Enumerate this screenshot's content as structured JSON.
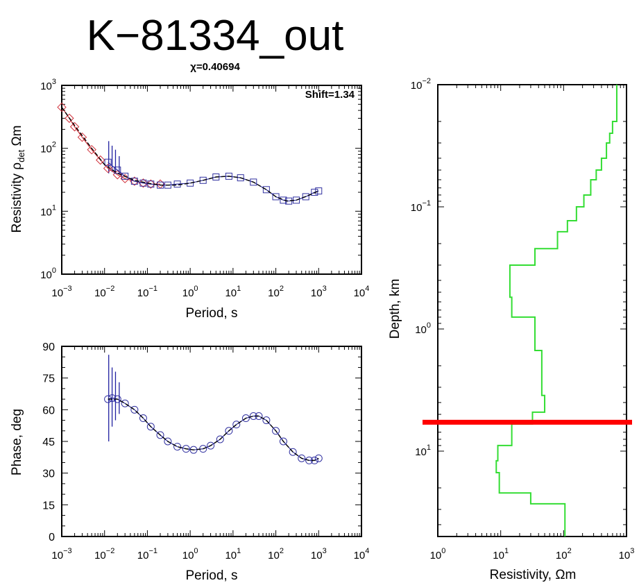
{
  "figure": {
    "title": "K−81334_out",
    "chi_label": "χ=0.40694",
    "shift_label": "Shift=1.34"
  },
  "chart_data": [
    {
      "id": "resistivity",
      "type": "scatter",
      "xlabel": "Period, s",
      "ylabel_main": "Resistivity ρ",
      "ylabel_sub": "det",
      "ylabel_unit": " Ωm",
      "xscale": "log",
      "yscale": "log",
      "xlim": [
        0.001,
        10000
      ],
      "ylim": [
        1,
        1000
      ],
      "x_ticks": [
        {
          "base": "10",
          "exp": "−3",
          "v": 0.001
        },
        {
          "base": "10",
          "exp": "−2",
          "v": 0.01
        },
        {
          "base": "10",
          "exp": "−1",
          "v": 0.1
        },
        {
          "base": "10",
          "exp": "0",
          "v": 1
        },
        {
          "base": "10",
          "exp": "1",
          "v": 10
        },
        {
          "base": "10",
          "exp": "2",
          "v": 100
        },
        {
          "base": "10",
          "exp": "3",
          "v": 1000
        },
        {
          "base": "10",
          "exp": "4",
          "v": 10000
        }
      ],
      "y_ticks": [
        {
          "base": "10",
          "exp": "0",
          "v": 1
        },
        {
          "base": "10",
          "exp": "1",
          "v": 10
        },
        {
          "base": "10",
          "exp": "2",
          "v": 100
        },
        {
          "base": "10",
          "exp": "3",
          "v": 1000
        }
      ],
      "series": [
        {
          "marker": "diamond",
          "color": "#d0303a",
          "x": [
            0.001,
            0.0015,
            0.002,
            0.003,
            0.005,
            0.008,
            0.012,
            0.02,
            0.03,
            0.05,
            0.08,
            0.12,
            0.2
          ],
          "y": [
            450,
            300,
            220,
            150,
            95,
            65,
            48,
            38,
            33,
            30,
            28,
            27,
            27
          ]
        },
        {
          "marker": "square",
          "color": "#3030a0",
          "x": [
            0.012,
            0.02,
            0.03,
            0.05,
            0.08,
            0.12,
            0.2,
            0.3,
            0.5,
            1,
            2,
            4,
            8,
            15,
            30,
            60,
            100,
            150,
            200,
            300,
            500,
            800,
            1000
          ],
          "y": [
            60,
            45,
            36,
            30,
            28,
            27,
            26,
            26,
            27,
            28,
            31,
            35,
            36,
            34,
            29,
            22,
            17,
            15,
            14.5,
            15,
            17,
            20,
            21
          ]
        }
      ],
      "model_curve": {
        "color": "#000000",
        "x": [
          0.001,
          0.002,
          0.005,
          0.01,
          0.02,
          0.05,
          0.1,
          0.2,
          0.5,
          1,
          2,
          4,
          8,
          15,
          30,
          60,
          100,
          180,
          300,
          600,
          1000
        ],
        "y": [
          450,
          230,
          100,
          55,
          40,
          31,
          28,
          26,
          26,
          28,
          31,
          35,
          36,
          34,
          29,
          22,
          17,
          14.5,
          15,
          18,
          21
        ]
      },
      "error_bars": [
        {
          "x": 0.0125,
          "lo": 40,
          "hi": 130
        },
        {
          "x": 0.015,
          "lo": 42,
          "hi": 110
        },
        {
          "x": 0.018,
          "lo": 40,
          "hi": 95
        },
        {
          "x": 0.022,
          "lo": 40,
          "hi": 75
        }
      ]
    },
    {
      "id": "phase",
      "type": "scatter",
      "xlabel": "Period, s",
      "ylabel": "Phase, deg",
      "xscale": "log",
      "xlim": [
        0.001,
        10000
      ],
      "ylim": [
        0,
        90
      ],
      "x_ticks": [
        {
          "base": "10",
          "exp": "−3",
          "v": 0.001
        },
        {
          "base": "10",
          "exp": "−2",
          "v": 0.01
        },
        {
          "base": "10",
          "exp": "−1",
          "v": 0.1
        },
        {
          "base": "10",
          "exp": "0",
          "v": 1
        },
        {
          "base": "10",
          "exp": "1",
          "v": 10
        },
        {
          "base": "10",
          "exp": "2",
          "v": 100
        },
        {
          "base": "10",
          "exp": "3",
          "v": 1000
        },
        {
          "base": "10",
          "exp": "4",
          "v": 10000
        }
      ],
      "y_ticks": [
        "0",
        "15",
        "30",
        "45",
        "60",
        "75",
        "90"
      ],
      "series": [
        {
          "marker": "circle",
          "color": "#3030a0",
          "x": [
            0.012,
            0.015,
            0.02,
            0.03,
            0.05,
            0.08,
            0.12,
            0.2,
            0.3,
            0.5,
            0.8,
            1.2,
            2,
            3,
            5,
            8,
            12,
            20,
            30,
            40,
            60,
            100,
            150,
            250,
            400,
            600,
            800,
            1000
          ],
          "y": [
            65,
            65.5,
            65,
            63,
            60,
            56,
            52,
            48,
            45,
            42.5,
            41.5,
            41,
            41.5,
            43,
            46,
            50,
            53,
            56,
            57,
            57,
            55,
            50,
            45,
            40,
            37,
            36,
            36,
            37
          ]
        }
      ],
      "model_curve": {
        "color": "#000000",
        "x": [
          0.012,
          0.02,
          0.03,
          0.05,
          0.08,
          0.12,
          0.2,
          0.3,
          0.5,
          0.8,
          1.2,
          2,
          3,
          5,
          8,
          12,
          20,
          30,
          40,
          60,
          100,
          150,
          250,
          400,
          600,
          800,
          1000
        ],
        "y": [
          65,
          65,
          63,
          60,
          56,
          52,
          48,
          45,
          42.5,
          41.5,
          41,
          41.5,
          43,
          46,
          50,
          53,
          56,
          57,
          57,
          55,
          50,
          45,
          40,
          37,
          36,
          36,
          37
        ]
      },
      "error_bars": [
        {
          "x": 0.0125,
          "lo": 45,
          "hi": 86
        },
        {
          "x": 0.015,
          "lo": 52,
          "hi": 80
        },
        {
          "x": 0.018,
          "lo": 55,
          "hi": 78
        },
        {
          "x": 0.022,
          "lo": 58,
          "hi": 73
        }
      ]
    },
    {
      "id": "model",
      "type": "line",
      "xlabel": "Resistivity, Ωm",
      "ylabel": "Depth, km",
      "xscale": "log",
      "yscale": "log",
      "xlim": [
        1,
        1000
      ],
      "ylim_depth": [
        0.01,
        50
      ],
      "x_ticks": [
        {
          "base": "10",
          "exp": "0",
          "v": 1
        },
        {
          "base": "10",
          "exp": "1",
          "v": 10
        },
        {
          "base": "10",
          "exp": "2",
          "v": 100
        },
        {
          "base": "10",
          "exp": "3",
          "v": 1000
        }
      ],
      "y_ticks": [
        {
          "base": "10",
          "exp": "−2",
          "v": 0.01
        },
        {
          "base": "10",
          "exp": "−1",
          "v": 0.1
        },
        {
          "base": "10",
          "exp": "0",
          "v": 1
        },
        {
          "base": "10",
          "exp": "1",
          "v": 10
        }
      ],
      "profile": {
        "color": "#33dd33",
        "rho": [
          700,
          600,
          540,
          480,
          400,
          330,
          270,
          210,
          160,
          115,
          80,
          35,
          14,
          15,
          35,
          45,
          50,
          32,
          15,
          9,
          8.5,
          9.5,
          30,
          105
        ],
        "top": [
          0.01,
          0.02,
          0.025,
          0.03,
          0.04,
          0.05,
          0.06,
          0.08,
          0.1,
          0.13,
          0.16,
          0.22,
          0.3,
          0.55,
          0.8,
          1.5,
          3.5,
          4.8,
          6,
          9,
          12,
          15,
          22,
          27
        ],
        "bottom_depth": 50
      },
      "marker_depth_km": 5.8,
      "marker_color": "#ff0000"
    }
  ]
}
